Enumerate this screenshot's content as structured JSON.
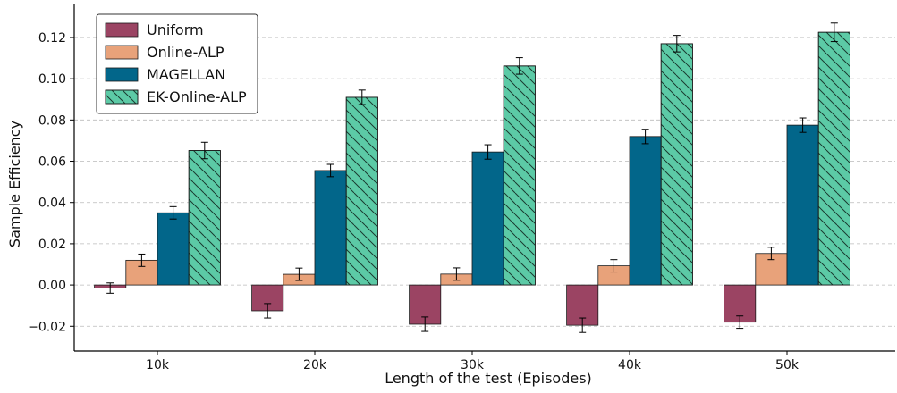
{
  "chart_data": {
    "type": "bar",
    "title": "",
    "xlabel": "Length of the test (Episodes)",
    "ylabel": "Sample Efficiency",
    "categories": [
      "10k",
      "20k",
      "30k",
      "40k",
      "50k"
    ],
    "ylim": [
      -0.032,
      0.136
    ],
    "yticks": [
      -0.02,
      0.0,
      0.02,
      0.04,
      0.06,
      0.08,
      0.1,
      0.12
    ],
    "ytick_labels": [
      "−0.02",
      "0.00",
      "0.02",
      "0.04",
      "0.06",
      "0.08",
      "0.10",
      "0.12"
    ],
    "grid": "horizontal dashed",
    "legend_position": "top-left",
    "series": [
      {
        "name": "Uniform",
        "color": "#9b4463",
        "hatch": false,
        "values": [
          -0.0015,
          -0.0125,
          -0.019,
          -0.0195,
          -0.018
        ],
        "errors": [
          0.0025,
          0.0035,
          0.0035,
          0.0035,
          0.003
        ]
      },
      {
        "name": "Online-ALP",
        "color": "#e8a27a",
        "hatch": false,
        "values": [
          0.012,
          0.0052,
          0.0053,
          0.0093,
          0.0153
        ],
        "errors": [
          0.003,
          0.003,
          0.003,
          0.003,
          0.003
        ]
      },
      {
        "name": "MAGELLAN",
        "color": "#02668a",
        "hatch": false,
        "values": [
          0.035,
          0.0555,
          0.0645,
          0.072,
          0.0775
        ],
        "errors": [
          0.003,
          0.003,
          0.0035,
          0.0035,
          0.0035
        ]
      },
      {
        "name": "EK-Online-ALP",
        "color": "#5ccaa6",
        "hatch": true,
        "values": [
          0.0652,
          0.091,
          0.1062,
          0.117,
          0.1225
        ],
        "errors": [
          0.004,
          0.0035,
          0.004,
          0.004,
          0.0045
        ]
      }
    ]
  }
}
